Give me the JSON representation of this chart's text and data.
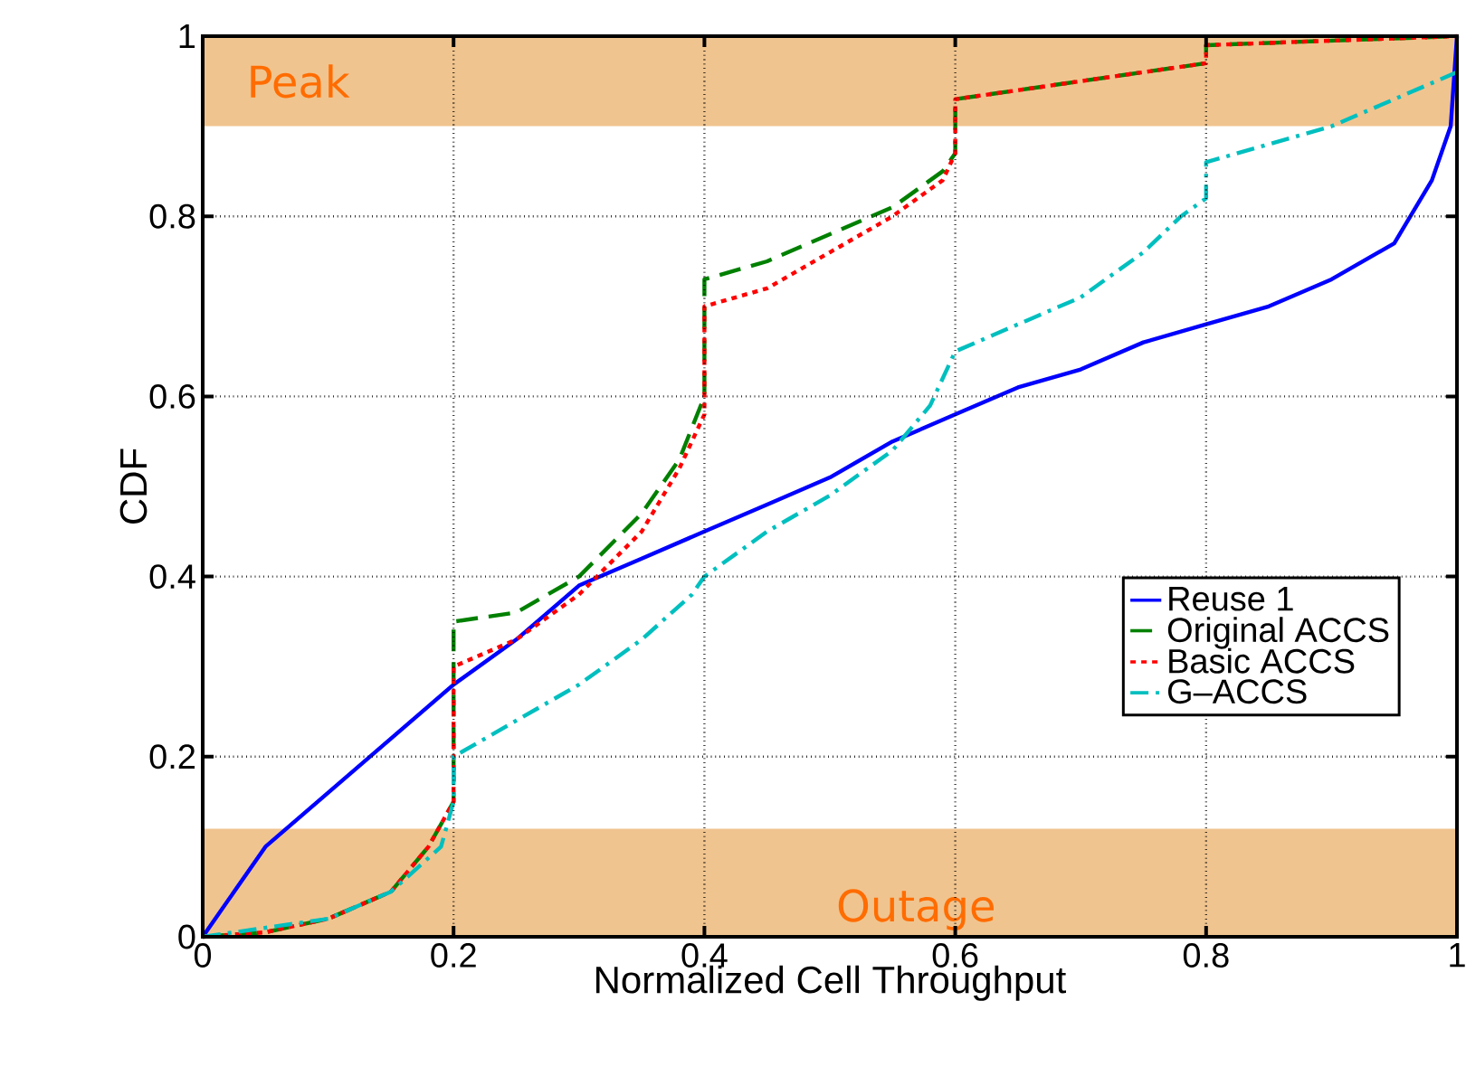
{
  "chart_data": {
    "type": "line",
    "xlabel": "Normalized Cell Throughput",
    "ylabel": "CDF",
    "xlim": [
      0,
      1
    ],
    "ylim": [
      0,
      1
    ],
    "xticks": [
      0,
      0.2,
      0.4,
      0.6,
      0.8,
      1
    ],
    "yticks": [
      0,
      0.2,
      0.4,
      0.6,
      0.8,
      1
    ],
    "grid": true,
    "legend": "bottom right",
    "bands": [
      {
        "axis": "y",
        "from": 0.9,
        "to": 1,
        "label": "Peak",
        "color": "#f0c48f"
      },
      {
        "axis": "y",
        "from": 0,
        "to": 0.12,
        "label": "Outage",
        "color": "#f0c48f"
      }
    ],
    "series": [
      {
        "name": "Reuse 1",
        "color": "#0000ff",
        "line_style": "solid",
        "x": [
          0,
          0.05,
          0.1,
          0.15,
          0.2,
          0.25,
          0.3,
          0.35,
          0.4,
          0.45,
          0.5,
          0.55,
          0.6,
          0.65,
          0.7,
          0.75,
          0.8,
          0.85,
          0.9,
          0.95,
          0.98,
          0.995,
          1
        ],
        "values": [
          0,
          0.1,
          0.16,
          0.22,
          0.28,
          0.33,
          0.39,
          0.42,
          0.45,
          0.48,
          0.51,
          0.55,
          0.58,
          0.61,
          0.63,
          0.66,
          0.68,
          0.7,
          0.73,
          0.77,
          0.84,
          0.9,
          1
        ]
      },
      {
        "name": "Original ACCS",
        "color": "#008000",
        "line_style": "dashed",
        "x": [
          0,
          0.05,
          0.1,
          0.15,
          0.18,
          0.2,
          0.2,
          0.25,
          0.3,
          0.35,
          0.38,
          0.4,
          0.4,
          0.45,
          0.5,
          0.55,
          0.59,
          0.6,
          0.6,
          0.7,
          0.8,
          0.8,
          1
        ],
        "values": [
          0,
          0.005,
          0.02,
          0.05,
          0.1,
          0.15,
          0.35,
          0.36,
          0.4,
          0.47,
          0.53,
          0.6,
          0.73,
          0.75,
          0.78,
          0.81,
          0.85,
          0.87,
          0.93,
          0.95,
          0.97,
          0.99,
          1
        ]
      },
      {
        "name": "Basic ACCS",
        "color": "#ff0000",
        "line_style": "dotted",
        "x": [
          0,
          0.05,
          0.1,
          0.15,
          0.18,
          0.2,
          0.2,
          0.25,
          0.3,
          0.35,
          0.38,
          0.4,
          0.4,
          0.45,
          0.5,
          0.55,
          0.59,
          0.6,
          0.6,
          0.7,
          0.8,
          0.8,
          1
        ],
        "values": [
          0,
          0.005,
          0.02,
          0.05,
          0.1,
          0.15,
          0.3,
          0.33,
          0.38,
          0.45,
          0.52,
          0.58,
          0.7,
          0.72,
          0.76,
          0.8,
          0.84,
          0.87,
          0.93,
          0.95,
          0.97,
          0.99,
          1
        ]
      },
      {
        "name": "G–ACCS",
        "color": "#00bfbf",
        "line_style": "dashdot",
        "x": [
          0,
          0.1,
          0.15,
          0.19,
          0.2,
          0.2,
          0.25,
          0.3,
          0.35,
          0.39,
          0.4,
          0.45,
          0.5,
          0.55,
          0.58,
          0.6,
          0.65,
          0.7,
          0.75,
          0.78,
          0.8,
          0.8,
          0.9,
          1
        ],
        "values": [
          0,
          0.02,
          0.05,
          0.1,
          0.15,
          0.2,
          0.24,
          0.28,
          0.33,
          0.38,
          0.4,
          0.45,
          0.49,
          0.54,
          0.59,
          0.65,
          0.68,
          0.71,
          0.76,
          0.8,
          0.82,
          0.86,
          0.9,
          0.96
        ]
      }
    ]
  }
}
